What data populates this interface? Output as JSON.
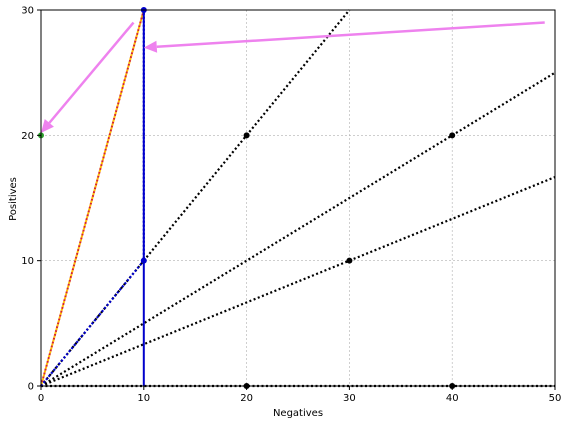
{
  "chart_data": {
    "type": "line",
    "title": "",
    "xlabel": "Negatives",
    "ylabel": "Positives",
    "xlim": [
      0,
      50
    ],
    "ylim": [
      0,
      30
    ],
    "x_ticks": [
      0,
      10,
      20,
      30,
      40,
      50
    ],
    "y_ticks": [
      0,
      10,
      20,
      30
    ],
    "x_tick_labels": [
      "0",
      "10",
      "20",
      "30",
      "40",
      "50"
    ],
    "y_tick_labels": [
      "0",
      "10",
      "20",
      "30"
    ],
    "grid": true,
    "colors": {
      "grid": "#b0b0b0",
      "ref_lines": "#000000",
      "highlight_line": "#0000cc",
      "curve_red": "#d62728",
      "curve_orange": "#ffbf00",
      "arrow": "#ee82ee",
      "green_marker": "#2ca02c"
    },
    "series": [
      {
        "style": "dotted-black",
        "points": [
          [
            0,
            0
          ],
          [
            30,
            30
          ]
        ],
        "markers": [
          [
            20,
            20
          ]
        ]
      },
      {
        "style": "dotted-black",
        "points": [
          [
            0,
            0
          ],
          [
            50,
            25
          ]
        ],
        "markers": [
          [
            40,
            20
          ]
        ]
      },
      {
        "style": "dotted-black",
        "points": [
          [
            0,
            0
          ],
          [
            50,
            16.67
          ]
        ],
        "markers": [
          [
            30,
            10
          ]
        ]
      },
      {
        "style": "dotted-black",
        "points": [
          [
            0,
            0
          ],
          [
            50,
            0
          ]
        ],
        "markers": [
          [
            20,
            0
          ],
          [
            40,
            0
          ]
        ]
      },
      {
        "style": "dotted-red",
        "points": [
          [
            0,
            0
          ],
          [
            10,
            30
          ]
        ]
      },
      {
        "style": "dotted-orange",
        "points": [
          [
            0,
            0
          ],
          [
            10,
            30
          ]
        ]
      },
      {
        "style": "dotted-blue",
        "points": [
          [
            0,
            0
          ],
          [
            10,
            10
          ],
          [
            10,
            30
          ]
        ],
        "markers": [
          [
            10,
            10
          ],
          [
            10,
            30
          ]
        ]
      },
      {
        "style": "solid-blue",
        "points": [
          [
            10,
            0
          ],
          [
            10,
            30
          ]
        ]
      }
    ],
    "highlight_markers": [
      [
        0,
        20
      ]
    ],
    "arrows": [
      {
        "from": [
          9,
          29
        ],
        "to": [
          0,
          20.2
        ]
      },
      {
        "from": [
          49,
          29
        ],
        "to": [
          10,
          27
        ]
      }
    ]
  }
}
